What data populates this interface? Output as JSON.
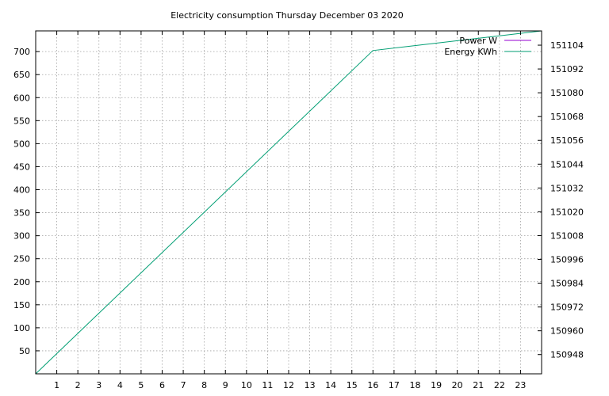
{
  "chart_data": {
    "type": "line",
    "title": "Electricity consumption Thursday December 03 2020",
    "x_ticks": [
      1,
      2,
      3,
      4,
      5,
      6,
      7,
      8,
      9,
      10,
      11,
      12,
      13,
      14,
      15,
      16,
      17,
      18,
      19,
      20,
      21,
      22,
      23
    ],
    "xlim": [
      0,
      24
    ],
    "y_ticks": [
      50,
      100,
      150,
      200,
      250,
      300,
      350,
      400,
      450,
      500,
      550,
      600,
      650,
      700
    ],
    "ylim": [
      0,
      745
    ],
    "y2_ticks": [
      150948,
      150960,
      150972,
      150984,
      150996,
      151008,
      151020,
      151032,
      151044,
      151056,
      151068,
      151080,
      151092,
      151104
    ],
    "y2lim": [
      150938.3,
      151111.2
    ],
    "grid": true,
    "legend_position": "top-right",
    "series": [
      {
        "name": "Power W",
        "color": "#9400d3",
        "axis": "y",
        "x": [],
        "y": []
      },
      {
        "name": "Energy KWh",
        "color": "#009e73",
        "axis": "y2",
        "x": [
          0,
          16,
          24
        ],
        "y": [
          150938.3,
          151101.3,
          151111.2
        ]
      }
    ]
  }
}
